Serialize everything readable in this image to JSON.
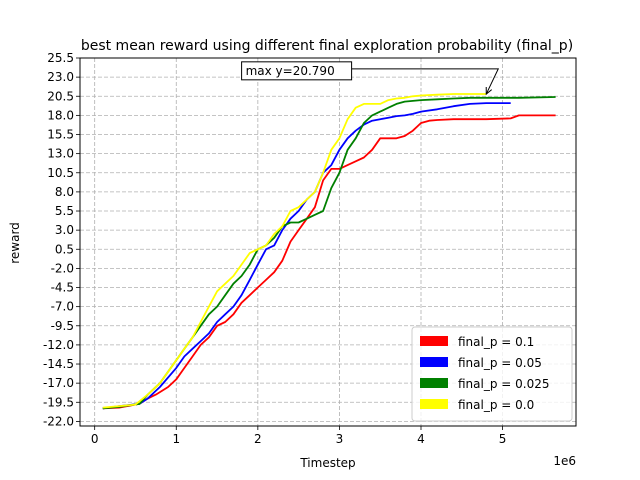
{
  "chart_data": {
    "type": "line",
    "title": "best mean reward using different final exploration probability (final_p)",
    "xlabel": "Timestep",
    "ylabel": "reward",
    "x_multiplier_label": "1e6",
    "xlim": [
      -0.18,
      5.9
    ],
    "ylim": [
      -22.6,
      25.5
    ],
    "x_ticks": [
      0,
      1,
      2,
      3,
      4,
      5
    ],
    "y_ticks": [
      -22.0,
      -19.5,
      -17.0,
      -14.5,
      -12.0,
      -9.5,
      -7.0,
      -4.5,
      -2.0,
      0.5,
      3.0,
      5.5,
      8.0,
      10.5,
      13.0,
      15.5,
      18.0,
      20.5,
      23.0,
      25.5
    ],
    "y_tick_labels": [
      "-22.0",
      "-19.5",
      "-17.0",
      "-14.5",
      "-12.0",
      "-9.5",
      "-7.0",
      "-4.5",
      "-2.0",
      "0.5",
      "3.0",
      "5.5",
      "8.0",
      "10.5",
      "13.0",
      "15.5",
      "18.0",
      "20.5",
      "23.0",
      "25.5"
    ],
    "grid": true,
    "legend_position": "lower-right",
    "annotation": {
      "text": "max y=20.790",
      "point": [
        4.8,
        20.79
      ],
      "text_anchor": [
        1.85,
        23.3
      ]
    },
    "series": [
      {
        "name": "final_p = 0.1",
        "color": "#ff0000",
        "x": [
          0.1,
          0.3,
          0.55,
          0.65,
          0.75,
          0.9,
          1.0,
          1.1,
          1.2,
          1.3,
          1.4,
          1.5,
          1.6,
          1.7,
          1.8,
          1.9,
          2.0,
          2.1,
          2.2,
          2.3,
          2.4,
          2.5,
          2.6,
          2.7,
          2.8,
          2.9,
          3.0,
          3.1,
          3.2,
          3.3,
          3.4,
          3.5,
          3.6,
          3.7,
          3.8,
          3.9,
          4.0,
          4.1,
          4.2,
          4.4,
          4.6,
          4.8,
          5.1,
          5.2,
          5.65
        ],
        "y": [
          -20.3,
          -20.2,
          -19.7,
          -19.0,
          -18.5,
          -17.5,
          -16.5,
          -15.0,
          -13.5,
          -12.0,
          -11.0,
          -9.5,
          -9.0,
          -8.0,
          -6.5,
          -5.5,
          -4.5,
          -3.5,
          -2.5,
          -1.0,
          1.5,
          3.0,
          4.5,
          6.0,
          9.5,
          11.0,
          11.0,
          11.5,
          12.0,
          12.5,
          13.5,
          15.0,
          15.0,
          15.0,
          15.3,
          16.0,
          17.0,
          17.3,
          17.4,
          17.5,
          17.5,
          17.5,
          17.6,
          18.0,
          18.0
        ]
      },
      {
        "name": "final_p = 0.05",
        "color": "#0000ff",
        "x": [
          0.1,
          0.3,
          0.55,
          0.65,
          0.8,
          1.0,
          1.1,
          1.2,
          1.3,
          1.4,
          1.5,
          1.6,
          1.7,
          1.8,
          1.9,
          2.0,
          2.1,
          2.2,
          2.3,
          2.4,
          2.5,
          2.6,
          2.7,
          2.8,
          2.9,
          3.0,
          3.1,
          3.2,
          3.3,
          3.4,
          3.5,
          3.6,
          3.7,
          3.8,
          3.9,
          4.0,
          4.2,
          4.4,
          4.6,
          4.8,
          5.1
        ],
        "y": [
          -20.3,
          -20.0,
          -19.7,
          -19.0,
          -17.5,
          -15.0,
          -13.5,
          -12.5,
          -11.5,
          -10.5,
          -9.0,
          -8.0,
          -7.0,
          -5.5,
          -3.5,
          -1.5,
          0.5,
          1.0,
          3.0,
          4.5,
          5.5,
          7.0,
          8.0,
          10.5,
          11.5,
          13.5,
          15.0,
          16.0,
          16.8,
          17.3,
          17.5,
          17.7,
          17.9,
          18.0,
          18.2,
          18.5,
          18.8,
          19.2,
          19.5,
          19.6,
          19.6
        ]
      },
      {
        "name": "final_p = 0.025",
        "color": "#008000",
        "x": [
          0.1,
          0.3,
          0.55,
          0.65,
          0.8,
          1.0,
          1.1,
          1.2,
          1.3,
          1.4,
          1.5,
          1.6,
          1.7,
          1.8,
          1.9,
          2.0,
          2.1,
          2.2,
          2.3,
          2.4,
          2.5,
          2.6,
          2.7,
          2.8,
          2.9,
          3.0,
          3.1,
          3.2,
          3.3,
          3.4,
          3.5,
          3.6,
          3.7,
          3.8,
          4.0,
          4.2,
          4.4,
          4.6,
          4.8,
          5.0,
          5.2,
          5.65
        ],
        "y": [
          -20.3,
          -20.1,
          -19.7,
          -18.5,
          -17.0,
          -14.0,
          -12.5,
          -11.0,
          -9.5,
          -8.0,
          -7.0,
          -5.5,
          -4.0,
          -3.0,
          -1.5,
          0.5,
          1.0,
          2.0,
          3.5,
          4.0,
          4.0,
          4.5,
          5.0,
          5.5,
          8.5,
          10.5,
          13.5,
          15.0,
          17.0,
          18.0,
          18.5,
          19.0,
          19.5,
          19.8,
          20.0,
          20.1,
          20.2,
          20.3,
          20.3,
          20.3,
          20.3,
          20.4
        ]
      },
      {
        "name": "final_p = 0.0",
        "color": "#ffff00",
        "x": [
          0.1,
          0.3,
          0.5,
          0.65,
          0.8,
          1.0,
          1.1,
          1.2,
          1.3,
          1.4,
          1.5,
          1.6,
          1.7,
          1.8,
          1.9,
          2.0,
          2.1,
          2.2,
          2.3,
          2.4,
          2.5,
          2.6,
          2.7,
          2.8,
          2.9,
          3.0,
          3.1,
          3.2,
          3.3,
          3.4,
          3.5,
          3.6,
          3.7,
          3.8,
          3.9,
          4.0,
          4.2,
          4.4,
          4.6,
          4.8
        ],
        "y": [
          -20.2,
          -20.0,
          -19.8,
          -18.5,
          -17.0,
          -14.0,
          -12.5,
          -11.0,
          -9.0,
          -7.0,
          -5.0,
          -4.0,
          -3.0,
          -1.5,
          0.0,
          0.5,
          1.0,
          2.5,
          3.5,
          5.5,
          6.0,
          7.0,
          8.0,
          10.5,
          13.5,
          15.0,
          17.5,
          19.0,
          19.5,
          19.5,
          19.5,
          20.0,
          20.2,
          20.3,
          20.5,
          20.6,
          20.7,
          20.79,
          20.79,
          20.79
        ]
      }
    ]
  }
}
